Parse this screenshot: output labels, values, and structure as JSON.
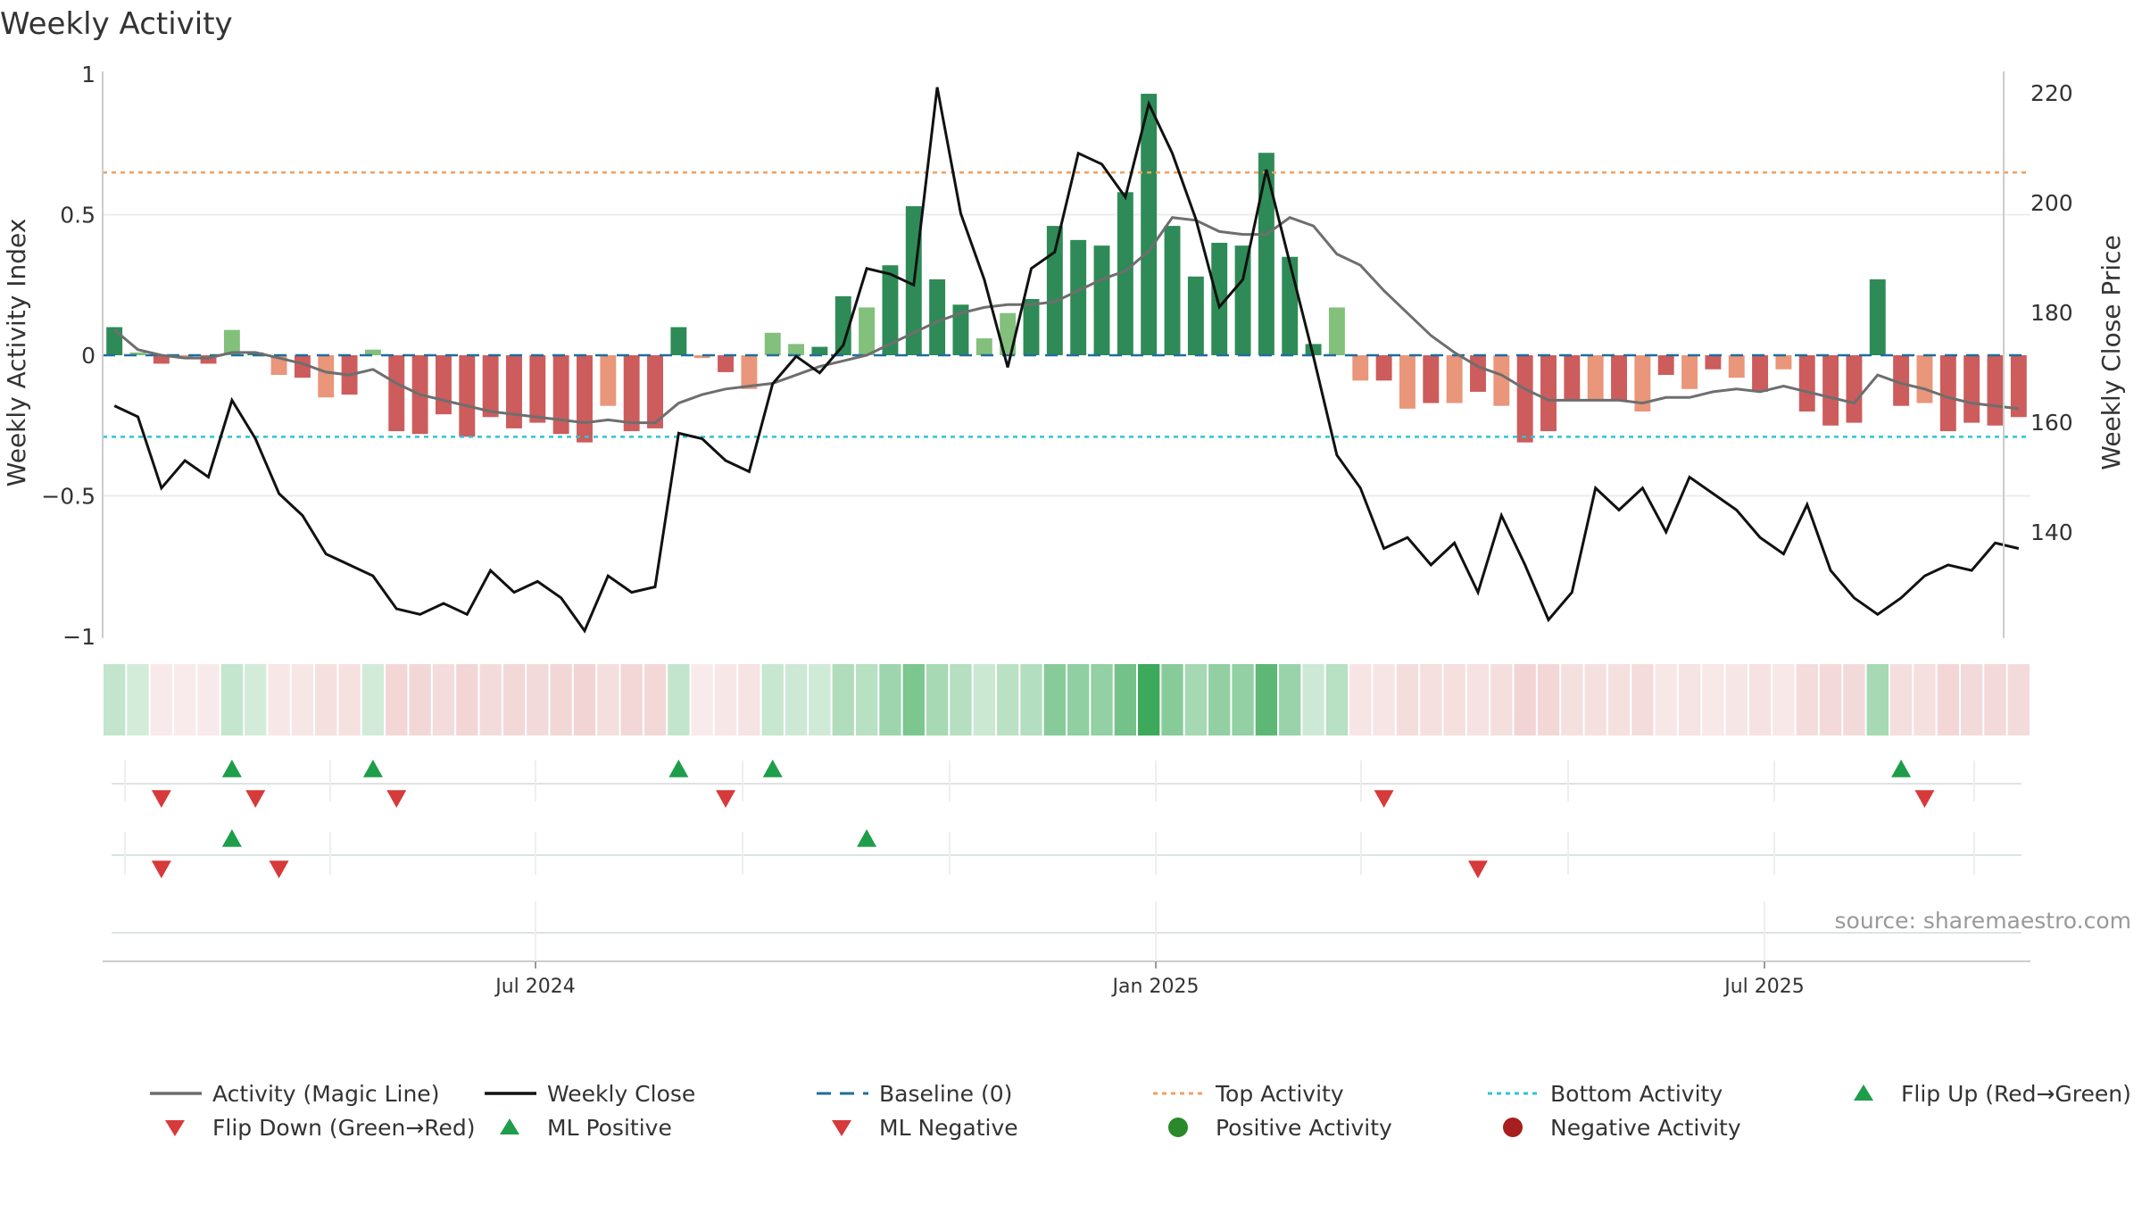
{
  "chart_data": {
    "type": "bar",
    "title": "Weekly Activity",
    "ylabel_left": "Weekly Activity Index",
    "ylabel_right": "Weekly Close Price",
    "source": "source: sharemaestro.com",
    "ylim_left": [
      -1,
      1
    ],
    "yticks_left": [
      "1",
      "0.5",
      "0",
      "−0.5",
      "−1"
    ],
    "ylim_right": [
      120,
      225
    ],
    "yticks_right": [
      "220",
      "200",
      "180",
      "160",
      "140"
    ],
    "xticks": [
      "Jul 2024",
      "Jan 2025",
      "Jul 2025"
    ],
    "top_activity": 0.65,
    "bottom_activity": -0.29,
    "baseline": 0,
    "weeks": 82,
    "activity": [
      0.1,
      0.01,
      -0.03,
      -0.01,
      -0.03,
      0.09,
      0.01,
      -0.07,
      -0.08,
      -0.15,
      -0.14,
      0.02,
      -0.27,
      -0.28,
      -0.21,
      -0.29,
      -0.22,
      -0.26,
      -0.24,
      -0.28,
      -0.31,
      -0.18,
      -0.27,
      -0.26,
      0.1,
      -0.01,
      -0.06,
      -0.12,
      0.08,
      0.04,
      0.03,
      0.21,
      0.17,
      0.32,
      0.53,
      0.27,
      0.18,
      0.06,
      0.15,
      0.2,
      0.46,
      0.41,
      0.39,
      0.58,
      0.93,
      0.46,
      0.28,
      0.4,
      0.39,
      0.72,
      0.35,
      0.04,
      0.17,
      -0.09,
      -0.09,
      -0.19,
      -0.17,
      -0.17,
      -0.13,
      -0.18,
      -0.31,
      -0.27,
      -0.16,
      -0.16,
      -0.16,
      -0.2,
      -0.07,
      -0.12,
      -0.05,
      -0.08,
      -0.13,
      -0.05,
      -0.2,
      -0.25,
      -0.24,
      0.27,
      -0.18,
      -0.17,
      -0.27,
      -0.24,
      -0.25,
      -0.22
    ],
    "magic_line": [
      0.09,
      0.02,
      0.0,
      -0.01,
      -0.01,
      0.01,
      0.01,
      -0.01,
      -0.03,
      -0.06,
      -0.07,
      -0.05,
      -0.1,
      -0.14,
      -0.16,
      -0.18,
      -0.2,
      -0.21,
      -0.22,
      -0.23,
      -0.24,
      -0.23,
      -0.24,
      -0.24,
      -0.17,
      -0.14,
      -0.12,
      -0.11,
      -0.1,
      -0.07,
      -0.04,
      -0.02,
      0.0,
      0.04,
      0.08,
      0.12,
      0.15,
      0.17,
      0.18,
      0.18,
      0.19,
      0.23,
      0.27,
      0.3,
      0.37,
      0.49,
      0.48,
      0.44,
      0.43,
      0.43,
      0.49,
      0.46,
      0.36,
      0.32,
      0.23,
      0.15,
      0.07,
      0.01,
      -0.04,
      -0.07,
      -0.12,
      -0.16,
      -0.16,
      -0.16,
      -0.16,
      -0.17,
      -0.15,
      -0.15,
      -0.13,
      -0.12,
      -0.13,
      -0.11,
      -0.13,
      -0.15,
      -0.17,
      -0.07,
      -0.1,
      -0.12,
      -0.15,
      -0.17,
      -0.18,
      -0.19
    ],
    "weekly_close": [
      163,
      161,
      148,
      153,
      150,
      164,
      157,
      147,
      143,
      136,
      134,
      132,
      126,
      125,
      127,
      125,
      133,
      129,
      131,
      128,
      122,
      132,
      129,
      130,
      158,
      157,
      153,
      151,
      167,
      172,
      169,
      174,
      188,
      187,
      185,
      221,
      198,
      186,
      170,
      188,
      191,
      209,
      207,
      201,
      218,
      209,
      197,
      181,
      186,
      206,
      189,
      172,
      154,
      148,
      137,
      139,
      134,
      138,
      129,
      143,
      134,
      124,
      129,
      148,
      144,
      148,
      140,
      150,
      147,
      144,
      139,
      136,
      145,
      133,
      128,
      125,
      128,
      132,
      134,
      133,
      138,
      137
    ],
    "flip_up": [
      5,
      11,
      24,
      28,
      76
    ],
    "flip_down": [
      2,
      6,
      12,
      26,
      54,
      77
    ],
    "ml_positive": [
      5,
      32
    ],
    "ml_negative": [
      2,
      7,
      58
    ],
    "legend": [
      {
        "label": "Activity (Magic Line)",
        "marker": "line",
        "color": "#6e6e6e"
      },
      {
        "label": "Weekly Close",
        "marker": "line",
        "color": "#111111"
      },
      {
        "label": "Baseline (0)",
        "marker": "dash",
        "color": "#1f6e9c"
      },
      {
        "label": "Top Activity",
        "marker": "dot-line",
        "color": "#f0a060"
      },
      {
        "label": "Bottom Activity",
        "marker": "dot-line",
        "color": "#2ec4d6"
      },
      {
        "label": "Flip Up (Red→Green)",
        "marker": "triangle-up",
        "color": "#1e9e4a"
      },
      {
        "label": "Flip Down (Green→Red)",
        "marker": "triangle-down",
        "color": "#d63a3a"
      },
      {
        "label": "ML Positive",
        "marker": "triangle-up",
        "color": "#1e9e4a"
      },
      {
        "label": "ML Negative",
        "marker": "triangle-down",
        "color": "#d63a3a"
      },
      {
        "label": "Positive Activity",
        "marker": "circle",
        "color": "#2a8a2a"
      },
      {
        "label": "Negative Activity",
        "marker": "circle",
        "color": "#a61e1e"
      }
    ],
    "colors": {
      "pos_strong": "#2e8b57",
      "pos_light": "#82c07c",
      "neg_strong": "#cd5c5c",
      "neg_light": "#e9967a",
      "text": "#333333",
      "grid": "#ececec",
      "axis": "#cccccc"
    }
  }
}
